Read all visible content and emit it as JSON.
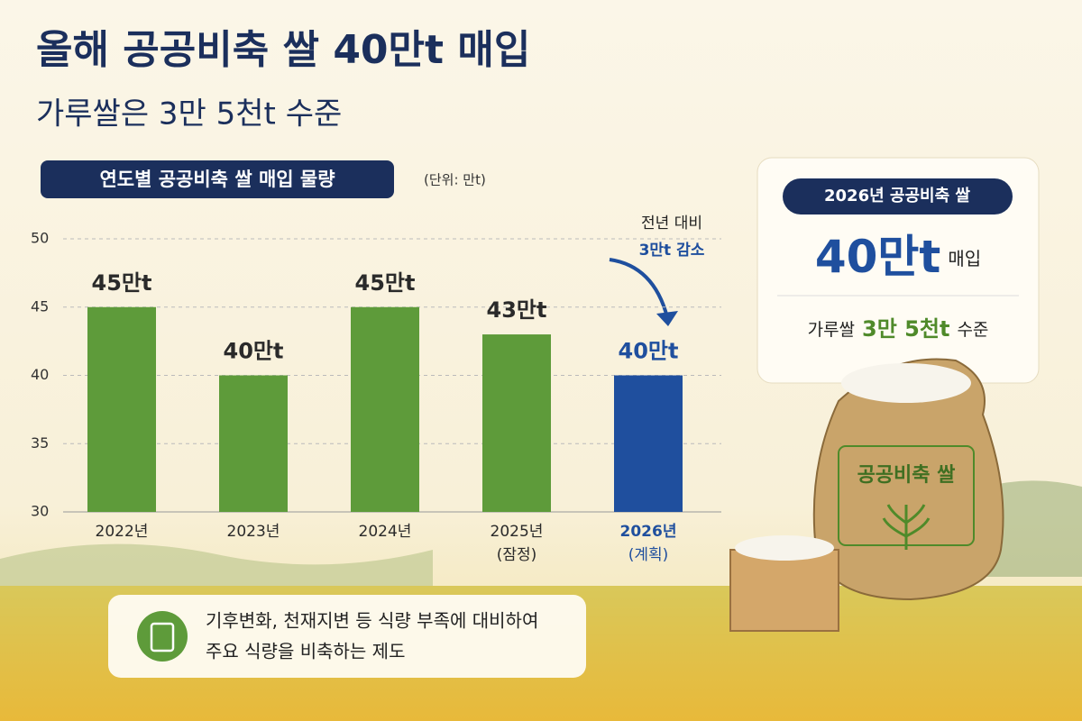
{
  "title": "올해 공공비축 쌀 40만t 매입",
  "subtitle": "가루쌀은 3만 5천t 수준",
  "chart_data": {
    "type": "bar",
    "title": "연도별 공공비축 쌀 매입 물량",
    "unit": "(단위: 만t)",
    "categories": [
      "2022년",
      "2023년",
      "2024년",
      "2025년",
      "2026년"
    ],
    "category_notes": [
      null,
      null,
      null,
      "(잠정)",
      "(계획)"
    ],
    "values": [
      45,
      40,
      45,
      43,
      40
    ],
    "value_labels": [
      "45만t",
      "40만t",
      "45만t",
      "43만t",
      "40만t"
    ],
    "colors": [
      "#5e9b3a",
      "#5e9b3a",
      "#5e9b3a",
      "#5e9b3a",
      "#1f4f9e"
    ],
    "label_colors": [
      "#2a2a2a",
      "#2a2a2a",
      "#2a2a2a",
      "#2a2a2a",
      "#1f4f9e"
    ],
    "ylim": [
      30,
      50
    ],
    "yticks": [
      30,
      35,
      40,
      45,
      50
    ],
    "grid": true,
    "annotation": [
      "전년 대비",
      "3만t 감소"
    ]
  },
  "highlight_card": {
    "badge": "2026년 공공비축 쌀",
    "amount": "40만t",
    "amount_suffix": "매입",
    "sub_prefix": "가루쌀",
    "sub_highlight": "3만 5천t",
    "sub_suffix": "수준"
  },
  "bag_label": "공공비축 쌀",
  "note": [
    "기후변화, 천재지변 등 식량 부족에 대비하여",
    "주요 식량을 비축하는 제도"
  ]
}
